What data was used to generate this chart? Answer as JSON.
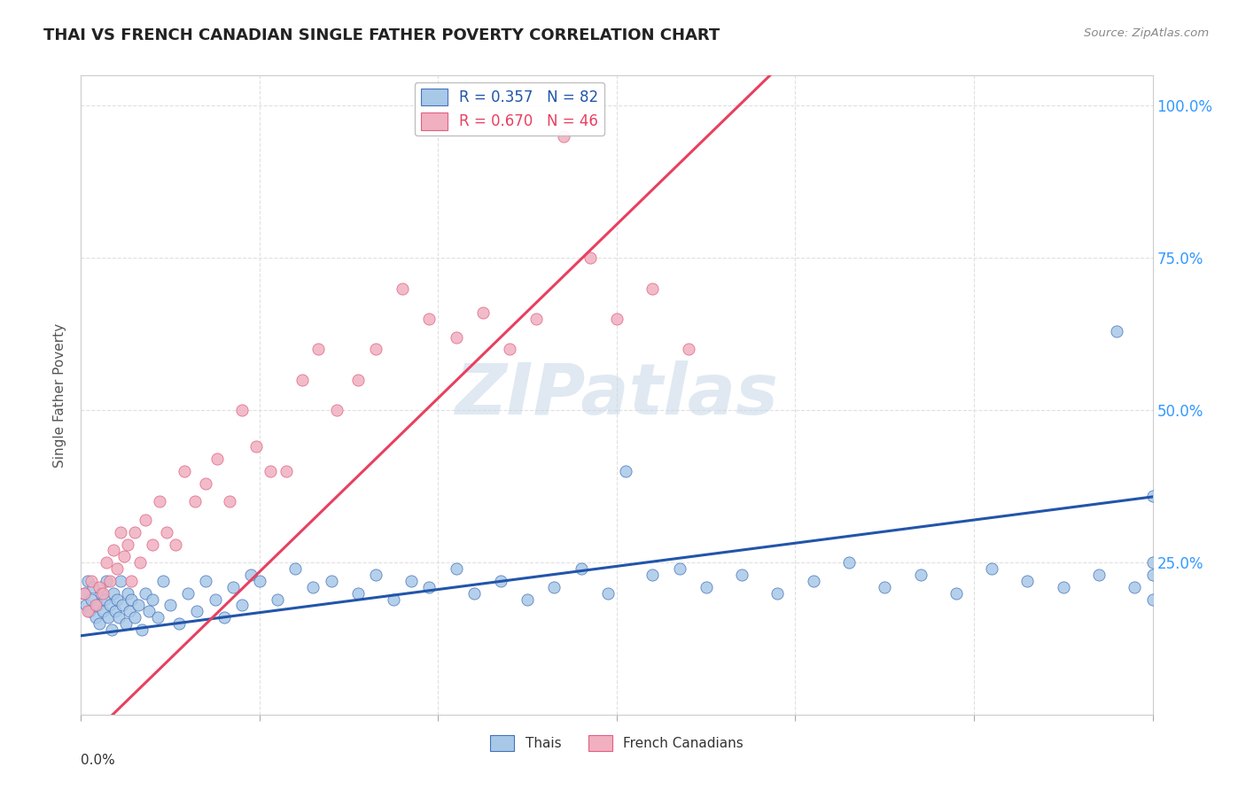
{
  "title": "THAI VS FRENCH CANADIAN SINGLE FATHER POVERTY CORRELATION CHART",
  "source": "Source: ZipAtlas.com",
  "ylabel": "Single Father Poverty",
  "xlim": [
    0.0,
    0.6
  ],
  "ylim": [
    0.0,
    1.05
  ],
  "ytick_vals": [
    0.25,
    0.5,
    0.75,
    1.0
  ],
  "ytick_labels": [
    "25.0%",
    "50.0%",
    "75.0%",
    "100.0%"
  ],
  "thai_scatter_color": "#a8c8e8",
  "thai_edge_color": "#4472b8",
  "thai_line_color": "#2255aa",
  "french_scatter_color": "#f0b0c0",
  "french_edge_color": "#e06080",
  "french_line_color": "#e84060",
  "legend_thai_label": "R = 0.357   N = 82",
  "legend_french_label": "R = 0.670   N = 46",
  "watermark": "ZIPatlas",
  "background_color": "#ffffff",
  "grid_color": "#e0e0e0",
  "thai_line_intercept": 0.13,
  "thai_line_slope": 0.38,
  "french_line_intercept": -0.05,
  "french_line_slope": 2.85,
  "thai_points_x": [
    0.002,
    0.003,
    0.004,
    0.005,
    0.006,
    0.007,
    0.008,
    0.009,
    0.01,
    0.011,
    0.012,
    0.013,
    0.014,
    0.015,
    0.016,
    0.017,
    0.018,
    0.019,
    0.02,
    0.021,
    0.022,
    0.023,
    0.025,
    0.026,
    0.027,
    0.028,
    0.03,
    0.032,
    0.034,
    0.036,
    0.038,
    0.04,
    0.043,
    0.046,
    0.05,
    0.055,
    0.06,
    0.065,
    0.07,
    0.075,
    0.08,
    0.085,
    0.09,
    0.095,
    0.1,
    0.11,
    0.12,
    0.13,
    0.14,
    0.155,
    0.165,
    0.175,
    0.185,
    0.195,
    0.21,
    0.22,
    0.235,
    0.25,
    0.265,
    0.28,
    0.295,
    0.305,
    0.32,
    0.335,
    0.35,
    0.37,
    0.39,
    0.41,
    0.43,
    0.45,
    0.47,
    0.49,
    0.51,
    0.53,
    0.55,
    0.57,
    0.58,
    0.59,
    0.6,
    0.6,
    0.6,
    0.6
  ],
  "thai_points_y": [
    0.2,
    0.18,
    0.22,
    0.17,
    0.19,
    0.21,
    0.16,
    0.18,
    0.15,
    0.2,
    0.17,
    0.19,
    0.22,
    0.16,
    0.18,
    0.14,
    0.2,
    0.17,
    0.19,
    0.16,
    0.22,
    0.18,
    0.15,
    0.2,
    0.17,
    0.19,
    0.16,
    0.18,
    0.14,
    0.2,
    0.17,
    0.19,
    0.16,
    0.22,
    0.18,
    0.15,
    0.2,
    0.17,
    0.22,
    0.19,
    0.16,
    0.21,
    0.18,
    0.23,
    0.22,
    0.19,
    0.24,
    0.21,
    0.22,
    0.2,
    0.23,
    0.19,
    0.22,
    0.21,
    0.24,
    0.2,
    0.22,
    0.19,
    0.21,
    0.24,
    0.2,
    0.4,
    0.23,
    0.24,
    0.21,
    0.23,
    0.2,
    0.22,
    0.25,
    0.21,
    0.23,
    0.2,
    0.24,
    0.22,
    0.21,
    0.23,
    0.63,
    0.21,
    0.36,
    0.19,
    0.23,
    0.25
  ],
  "french_points_x": [
    0.002,
    0.004,
    0.006,
    0.008,
    0.01,
    0.012,
    0.014,
    0.016,
    0.018,
    0.02,
    0.022,
    0.024,
    0.026,
    0.028,
    0.03,
    0.033,
    0.036,
    0.04,
    0.044,
    0.048,
    0.053,
    0.058,
    0.064,
    0.07,
    0.076,
    0.083,
    0.09,
    0.098,
    0.106,
    0.115,
    0.124,
    0.133,
    0.143,
    0.155,
    0.165,
    0.18,
    0.195,
    0.21,
    0.225,
    0.24,
    0.255,
    0.27,
    0.285,
    0.3,
    0.32,
    0.34
  ],
  "french_points_y": [
    0.2,
    0.17,
    0.22,
    0.18,
    0.21,
    0.2,
    0.25,
    0.22,
    0.27,
    0.24,
    0.3,
    0.26,
    0.28,
    0.22,
    0.3,
    0.25,
    0.32,
    0.28,
    0.35,
    0.3,
    0.28,
    0.4,
    0.35,
    0.38,
    0.42,
    0.35,
    0.5,
    0.44,
    0.4,
    0.4,
    0.55,
    0.6,
    0.5,
    0.55,
    0.6,
    0.7,
    0.65,
    0.62,
    0.66,
    0.6,
    0.65,
    0.95,
    0.75,
    0.65,
    0.7,
    0.6
  ]
}
